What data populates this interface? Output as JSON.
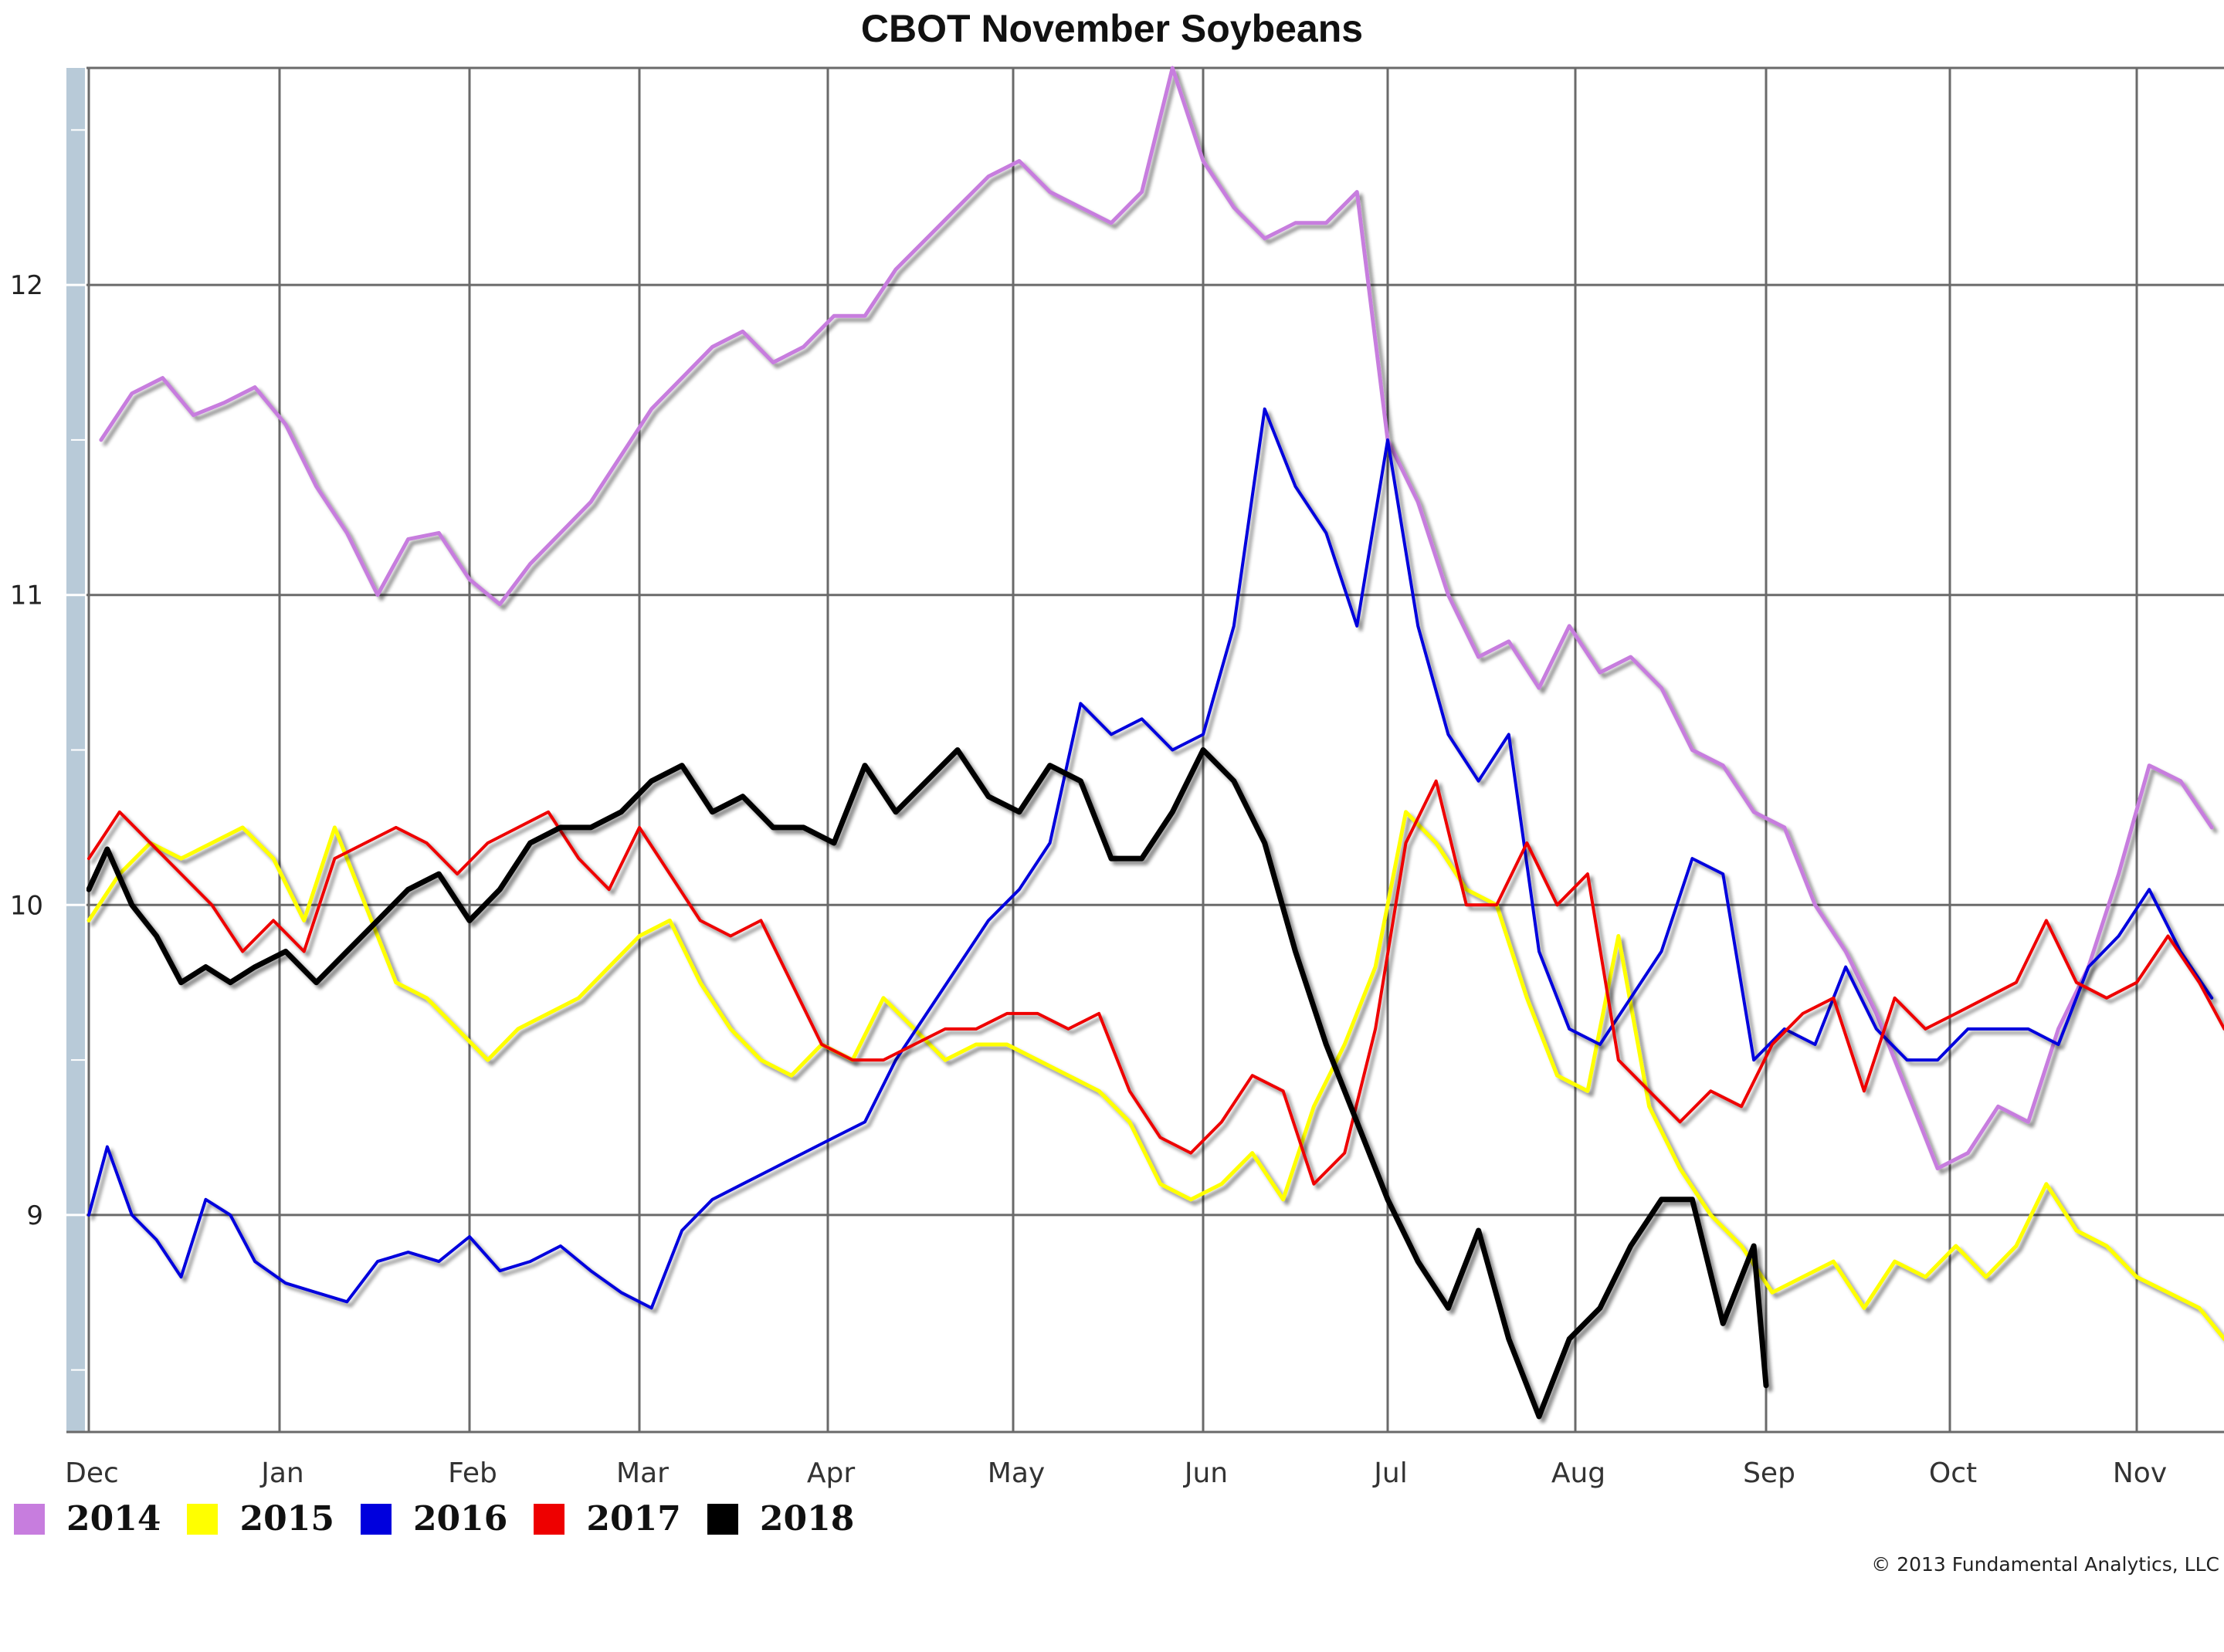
{
  "chart_data": {
    "type": "line",
    "title": "CBOT November Soybeans",
    "xlabel": "",
    "ylabel": "",
    "x_tick_labels": [
      "Dec",
      "Jan",
      "Feb",
      "Mar",
      "Apr",
      "May",
      "Jun",
      "Jul",
      "Aug",
      "Sep",
      "Oct",
      "Nov"
    ],
    "y_ticks": [
      9,
      10,
      11,
      12
    ],
    "ylim": [
      8.3,
      12.7
    ],
    "grid": true,
    "legend_position": "bottom-left",
    "series": [
      {
        "name": "2014",
        "color": "#c77dde",
        "width": 5,
        "x": [
          "Dec 3",
          "Dec 8",
          "Dec 13",
          "Dec 18",
          "Dec 23",
          "Dec 28",
          "Jan 2",
          "Jan 7",
          "Jan 12",
          "Jan 17",
          "Jan 22",
          "Jan 27",
          "Feb 1",
          "Feb 6",
          "Feb 11",
          "Feb 16",
          "Feb 21",
          "Feb 26",
          "Mar 3",
          "Mar 8",
          "Mar 13",
          "Mar 18",
          "Mar 23",
          "Mar 28",
          "Apr 2",
          "Apr 7",
          "Apr 12",
          "Apr 17",
          "Apr 22",
          "Apr 27",
          "May 2",
          "May 7",
          "May 12",
          "May 17",
          "May 22",
          "May 27",
          "Jun 1",
          "Jun 6",
          "Jun 11",
          "Jun 16",
          "Jun 21",
          "Jun 26",
          "Jul 1",
          "Jul 6",
          "Jul 11",
          "Jul 16",
          "Jul 21",
          "Jul 26",
          "Jul 31",
          "Aug 5",
          "Aug 10",
          "Aug 15",
          "Aug 20",
          "Aug 25",
          "Aug 30",
          "Sep 4",
          "Sep 9",
          "Sep 14",
          "Sep 19",
          "Sep 24",
          "Sep 29",
          "Oct 4",
          "Oct 9",
          "Oct 14",
          "Oct 19",
          "Oct 24",
          "Oct 29",
          "Nov 3",
          "Nov 8",
          "Nov 13"
        ],
        "y": [
          11.5,
          11.65,
          11.7,
          11.58,
          11.62,
          11.67,
          11.55,
          11.35,
          11.2,
          11.0,
          11.18,
          11.2,
          11.05,
          10.97,
          11.1,
          11.2,
          11.3,
          11.45,
          11.6,
          11.7,
          11.8,
          11.85,
          11.75,
          11.8,
          11.9,
          11.9,
          12.05,
          12.15,
          12.25,
          12.35,
          12.4,
          12.3,
          12.25,
          12.2,
          12.3,
          12.7,
          12.4,
          12.25,
          12.15,
          12.2,
          12.2,
          12.3,
          11.5,
          11.3,
          11.0,
          10.8,
          10.85,
          10.7,
          10.9,
          10.75,
          10.8,
          10.7,
          10.5,
          10.45,
          10.3,
          10.25,
          10.0,
          9.85,
          9.65,
          9.4,
          9.15,
          9.2,
          9.35,
          9.3,
          9.6,
          9.8,
          10.1,
          10.45,
          10.4,
          10.25
        ]
      },
      {
        "name": "2015",
        "color": "#ffff00",
        "width": 5,
        "x": [
          "Dec 1",
          "Dec 6",
          "Dec 11",
          "Dec 16",
          "Dec 21",
          "Dec 26",
          "Dec 31",
          "Jan 5",
          "Jan 10",
          "Jan 15",
          "Jan 20",
          "Jan 25",
          "Jan 30",
          "Feb 4",
          "Feb 9",
          "Feb 14",
          "Feb 19",
          "Feb 24",
          "Mar 1",
          "Mar 6",
          "Mar 11",
          "Mar 16",
          "Mar 21",
          "Mar 26",
          "Mar 31",
          "Apr 5",
          "Apr 10",
          "Apr 15",
          "Apr 20",
          "Apr 25",
          "Apr 30",
          "May 5",
          "May 10",
          "May 15",
          "May 20",
          "May 25",
          "May 30",
          "Jun 4",
          "Jun 9",
          "Jun 14",
          "Jun 19",
          "Jun 24",
          "Jun 29",
          "Jul 4",
          "Jul 9",
          "Jul 14",
          "Jul 19",
          "Jul 24",
          "Jul 29",
          "Aug 3",
          "Aug 8",
          "Aug 13",
          "Aug 18",
          "Aug 23",
          "Aug 28",
          "Sep 2",
          "Sep 7",
          "Sep 12",
          "Sep 17",
          "Sep 22",
          "Sep 27",
          "Oct 2",
          "Oct 7",
          "Oct 12",
          "Oct 17",
          "Oct 22",
          "Oct 27",
          "Nov 1",
          "Nov 6",
          "Nov 11",
          "Nov 15"
        ],
        "y": [
          9.95,
          10.1,
          10.2,
          10.15,
          10.2,
          10.25,
          10.15,
          9.95,
          10.25,
          10.0,
          9.75,
          9.7,
          9.6,
          9.5,
          9.6,
          9.65,
          9.7,
          9.8,
          9.9,
          9.95,
          9.75,
          9.6,
          9.5,
          9.45,
          9.55,
          9.5,
          9.7,
          9.6,
          9.5,
          9.55,
          9.55,
          9.5,
          9.45,
          9.4,
          9.3,
          9.1,
          9.05,
          9.1,
          9.2,
          9.05,
          9.35,
          9.55,
          9.8,
          10.3,
          10.2,
          10.05,
          10.0,
          9.7,
          9.45,
          9.4,
          9.9,
          9.35,
          9.15,
          9.0,
          8.9,
          8.75,
          8.8,
          8.85,
          8.7,
          8.85,
          8.8,
          8.9,
          8.8,
          8.9,
          9.1,
          8.95,
          8.9,
          8.8,
          8.75,
          8.7,
          8.6
        ]
      },
      {
        "name": "2016",
        "color": "#0000dd",
        "width": 4,
        "x": [
          "Dec 1",
          "Dec 4",
          "Dec 8",
          "Dec 12",
          "Dec 16",
          "Dec 20",
          "Dec 24",
          "Dec 28",
          "Jan 2",
          "Jan 7",
          "Jan 12",
          "Jan 17",
          "Jan 22",
          "Jan 27",
          "Feb 1",
          "Feb 6",
          "Feb 11",
          "Feb 16",
          "Feb 21",
          "Feb 26",
          "Mar 3",
          "Mar 8",
          "Mar 13",
          "Mar 18",
          "Mar 23",
          "Mar 28",
          "Apr 2",
          "Apr 7",
          "Apr 12",
          "Apr 17",
          "Apr 22",
          "Apr 27",
          "May 2",
          "May 7",
          "May 12",
          "May 17",
          "May 22",
          "May 27",
          "Jun 1",
          "Jun 6",
          "Jun 11",
          "Jun 16",
          "Jun 21",
          "Jun 26",
          "Jul 1",
          "Jul 6",
          "Jul 11",
          "Jul 16",
          "Jul 21",
          "Jul 26",
          "Jul 31",
          "Aug 5",
          "Aug 10",
          "Aug 15",
          "Aug 20",
          "Aug 25",
          "Aug 30",
          "Sep 4",
          "Sep 9",
          "Sep 14",
          "Sep 19",
          "Sep 24",
          "Sep 29",
          "Oct 4",
          "Oct 9",
          "Oct 14",
          "Oct 19",
          "Oct 24",
          "Oct 29",
          "Nov 3",
          "Nov 8",
          "Nov 13"
        ],
        "y": [
          9.0,
          9.22,
          9.0,
          8.92,
          8.8,
          9.05,
          9.0,
          8.85,
          8.78,
          8.75,
          8.72,
          8.85,
          8.88,
          8.85,
          8.93,
          8.82,
          8.85,
          8.9,
          8.82,
          8.75,
          8.7,
          8.95,
          9.05,
          9.1,
          9.15,
          9.2,
          9.25,
          9.3,
          9.5,
          9.65,
          9.8,
          9.95,
          10.05,
          10.2,
          10.65,
          10.55,
          10.6,
          10.5,
          10.55,
          10.9,
          11.6,
          11.35,
          11.2,
          10.9,
          11.5,
          10.9,
          10.55,
          10.4,
          10.55,
          9.85,
          9.6,
          9.55,
          9.7,
          9.85,
          10.15,
          10.1,
          9.5,
          9.6,
          9.55,
          9.8,
          9.6,
          9.5,
          9.5,
          9.6,
          9.6,
          9.6,
          9.55,
          9.8,
          9.9,
          10.05,
          9.85,
          9.7
        ]
      },
      {
        "name": "2017",
        "color": "#ee0000",
        "width": 4,
        "x": [
          "Dec 1",
          "Dec 6",
          "Dec 11",
          "Dec 16",
          "Dec 21",
          "Dec 26",
          "Dec 31",
          "Jan 5",
          "Jan 10",
          "Jan 15",
          "Jan 20",
          "Jan 25",
          "Jan 30",
          "Feb 4",
          "Feb 9",
          "Feb 14",
          "Feb 19",
          "Feb 24",
          "Mar 1",
          "Mar 6",
          "Mar 11",
          "Mar 16",
          "Mar 21",
          "Mar 26",
          "Mar 31",
          "Apr 5",
          "Apr 10",
          "Apr 15",
          "Apr 20",
          "Apr 25",
          "Apr 30",
          "May 5",
          "May 10",
          "May 15",
          "May 20",
          "May 25",
          "May 30",
          "Jun 4",
          "Jun 9",
          "Jun 14",
          "Jun 19",
          "Jun 24",
          "Jun 29",
          "Jul 4",
          "Jul 9",
          "Jul 14",
          "Jul 19",
          "Jul 24",
          "Jul 29",
          "Aug 3",
          "Aug 8",
          "Aug 13",
          "Aug 18",
          "Aug 23",
          "Aug 28",
          "Sep 2",
          "Sep 7",
          "Sep 12",
          "Sep 17",
          "Sep 22",
          "Sep 27",
          "Oct 2",
          "Oct 7",
          "Oct 12",
          "Oct 17",
          "Oct 22",
          "Oct 27",
          "Nov 1",
          "Nov 6",
          "Nov 11",
          "Nov 15"
        ],
        "y": [
          10.15,
          10.3,
          10.2,
          10.1,
          10.0,
          9.85,
          9.95,
          9.85,
          10.15,
          10.2,
          10.25,
          10.2,
          10.1,
          10.2,
          10.25,
          10.3,
          10.15,
          10.05,
          10.25,
          10.1,
          9.95,
          9.9,
          9.95,
          9.75,
          9.55,
          9.5,
          9.5,
          9.55,
          9.6,
          9.6,
          9.65,
          9.65,
          9.6,
          9.65,
          9.4,
          9.25,
          9.2,
          9.3,
          9.45,
          9.4,
          9.1,
          9.2,
          9.6,
          10.2,
          10.4,
          10.0,
          10.0,
          10.2,
          10.0,
          10.1,
          9.5,
          9.4,
          9.3,
          9.4,
          9.35,
          9.55,
          9.65,
          9.7,
          9.4,
          9.7,
          9.6,
          9.65,
          9.7,
          9.75,
          9.95,
          9.75,
          9.7,
          9.75,
          9.9,
          9.75,
          9.6
        ]
      },
      {
        "name": "2018",
        "color": "#000000",
        "width": 7,
        "x": [
          "Dec 1",
          "Dec 4",
          "Dec 8",
          "Dec 12",
          "Dec 16",
          "Dec 20",
          "Dec 24",
          "Dec 28",
          "Jan 2",
          "Jan 7",
          "Jan 12",
          "Jan 17",
          "Jan 22",
          "Jan 27",
          "Feb 1",
          "Feb 6",
          "Feb 11",
          "Feb 16",
          "Feb 21",
          "Feb 26",
          "Mar 3",
          "Mar 8",
          "Mar 13",
          "Mar 18",
          "Mar 23",
          "Mar 28",
          "Apr 2",
          "Apr 7",
          "Apr 12",
          "Apr 17",
          "Apr 22",
          "Apr 27",
          "May 2",
          "May 7",
          "May 12",
          "May 17",
          "May 22",
          "May 27",
          "Jun 1",
          "Jun 6",
          "Jun 11",
          "Jun 16",
          "Jun 21",
          "Jun 26",
          "Jul 1",
          "Jul 6",
          "Jul 11",
          "Jul 16",
          "Jul 21",
          "Jul 26",
          "Jul 31",
          "Aug 5",
          "Aug 10",
          "Aug 15",
          "Aug 20",
          "Aug 25",
          "Aug 30",
          "Sep 1"
        ],
        "y": [
          10.05,
          10.18,
          10.0,
          9.9,
          9.75,
          9.8,
          9.75,
          9.8,
          9.85,
          9.75,
          9.85,
          9.95,
          10.05,
          10.1,
          9.95,
          10.05,
          10.2,
          10.25,
          10.25,
          10.3,
          10.4,
          10.45,
          10.3,
          10.35,
          10.25,
          10.25,
          10.2,
          10.45,
          10.3,
          10.4,
          10.5,
          10.35,
          10.3,
          10.45,
          10.4,
          10.15,
          10.15,
          10.3,
          10.5,
          10.4,
          10.2,
          9.85,
          9.55,
          9.3,
          9.05,
          8.85,
          8.7,
          8.95,
          8.6,
          8.35,
          8.6,
          8.7,
          8.9,
          9.05,
          9.05,
          8.65,
          8.9,
          8.45
        ]
      }
    ]
  },
  "legend": {
    "items": [
      {
        "label": "2014",
        "color": "#c77dde"
      },
      {
        "label": "2015",
        "color": "#ffff00"
      },
      {
        "label": "2016",
        "color": "#0000dd"
      },
      {
        "label": "2017",
        "color": "#ee0000"
      },
      {
        "label": "2018",
        "color": "#000000"
      }
    ]
  },
  "copyright": "© 2013 Fundamental Analytics, LLC"
}
